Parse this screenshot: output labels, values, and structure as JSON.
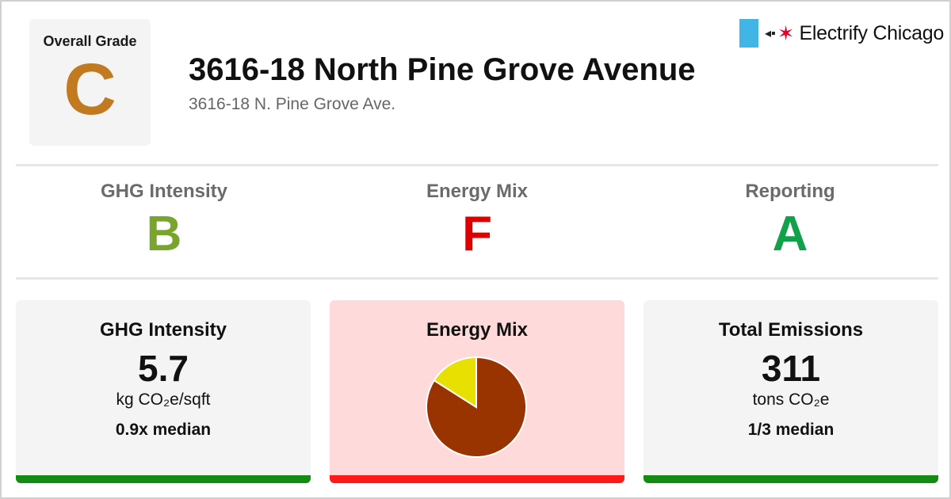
{
  "overall": {
    "label": "Overall Grade",
    "grade": "C",
    "color": "#c17a1f"
  },
  "building": {
    "title": "3616-18 North Pine Grove Avenue",
    "address": "3616-18 N. Pine Grove Ave."
  },
  "brand": {
    "name": "Electrify Chicago",
    "flag_color": "#41b6e6",
    "star_color": "#e4002b"
  },
  "grades": [
    {
      "label": "GHG Intensity",
      "grade": "B",
      "color": "#7aa52c"
    },
    {
      "label": "Energy Mix",
      "grade": "F",
      "color": "#dd0000"
    },
    {
      "label": "Reporting",
      "grade": "A",
      "color": "#12a14b"
    }
  ],
  "cards": {
    "ghg": {
      "title": "GHG Intensity",
      "value": "5.7",
      "unit": "kg CO₂e/sqft",
      "median": "0.9x median",
      "bar_color": "#158a15"
    },
    "energy": {
      "title": "Energy Mix",
      "bar_color": "#ff1a1a",
      "background": "#ffdada"
    },
    "emissions": {
      "title": "Total Emissions",
      "value": "311",
      "unit": "tons CO₂e",
      "median": "1/3 median",
      "bar_color": "#158a15"
    }
  },
  "chart_data": {
    "type": "pie",
    "slices": [
      {
        "value": 84,
        "color": "#993300"
      },
      {
        "value": 16,
        "color": "#e8e000"
      }
    ]
  }
}
